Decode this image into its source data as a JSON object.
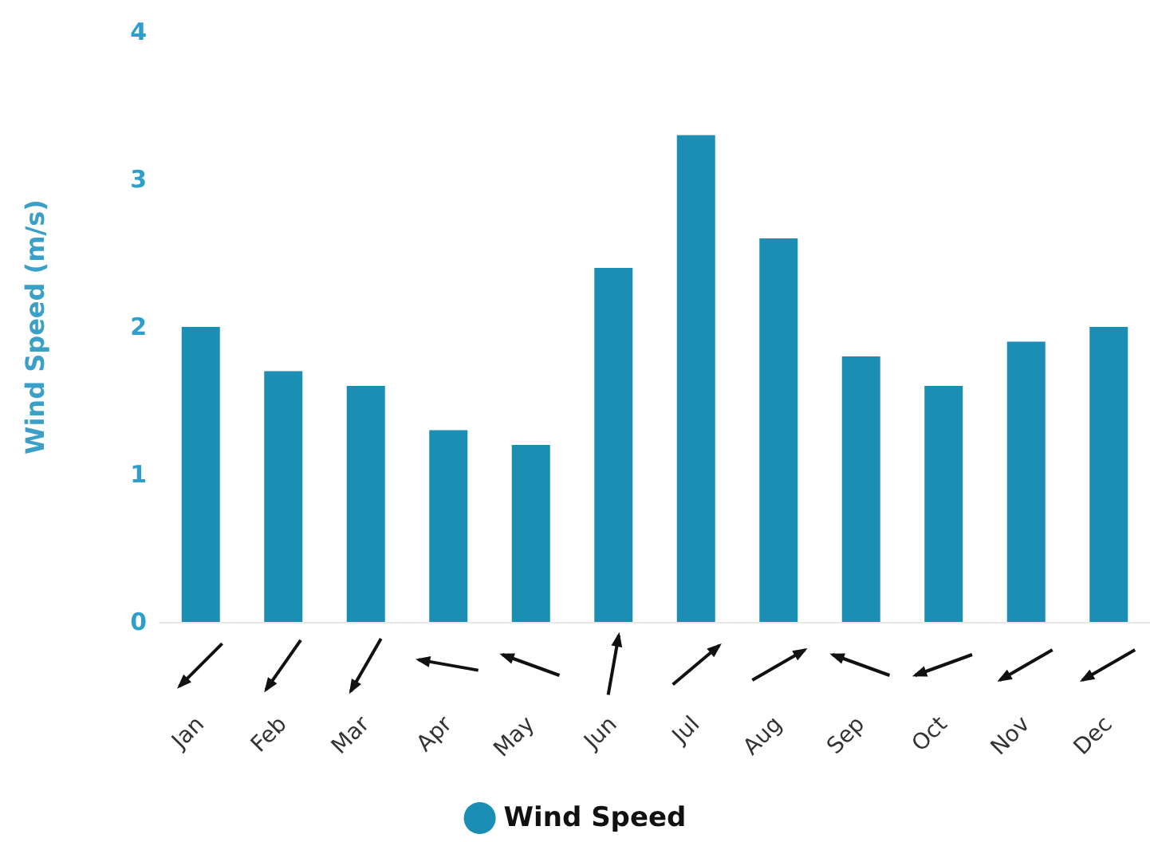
{
  "chart_data": {
    "type": "bar",
    "ylabel": "Wind Speed (m/s)",
    "categories": [
      "Jan",
      "Feb",
      "Mar",
      "Apr",
      "May",
      "Jun",
      "Jul",
      "Aug",
      "Sep",
      "Oct",
      "Nov",
      "Dec"
    ],
    "series": [
      {
        "name": "Wind Speed",
        "color": "#1a8fb3",
        "values": [
          2.0,
          1.7,
          1.6,
          1.3,
          1.2,
          2.4,
          3.3,
          2.6,
          1.8,
          1.6,
          1.9,
          2.0
        ]
      }
    ],
    "ylim": [
      0,
      4
    ],
    "yticks": [
      0,
      1,
      2,
      3,
      4
    ],
    "grid": false,
    "legend": "bottom"
  }
}
